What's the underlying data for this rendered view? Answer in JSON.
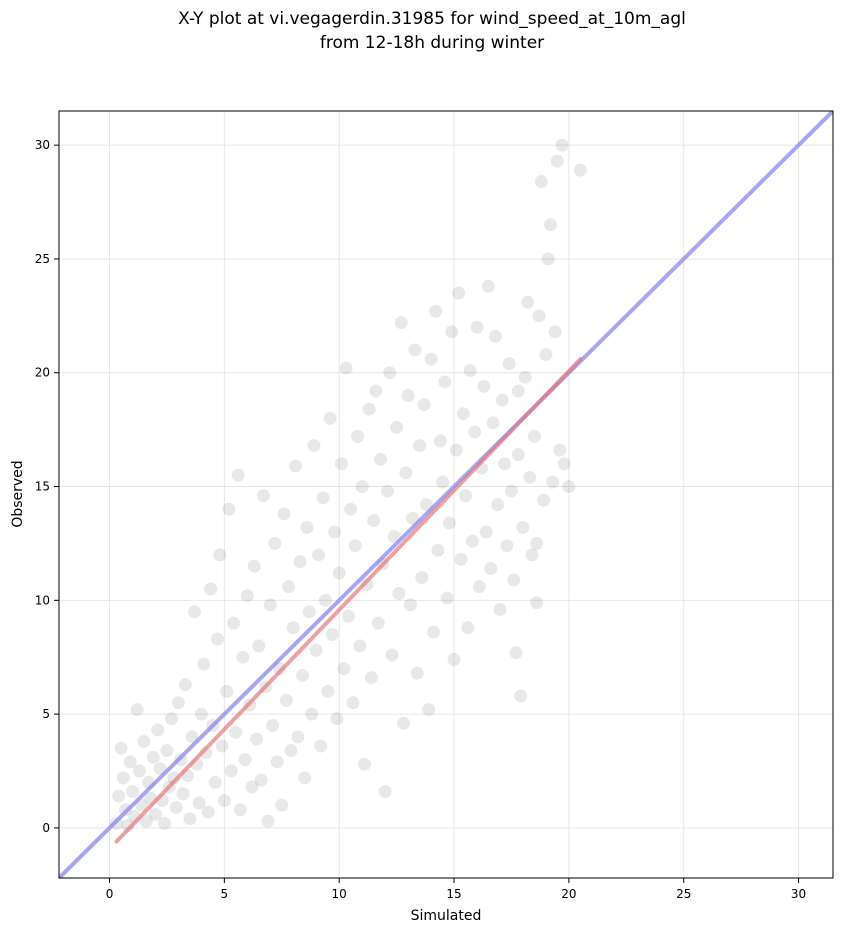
{
  "chart_data": {
    "type": "scatter",
    "title_lines": [
      "X-Y plot at vi.vegagerdin.31985 for wind_speed_at_10m_agl",
      "from 12-18h during winter"
    ],
    "xlabel": "Simulated",
    "ylabel": "Observed",
    "xlim": [
      -2.2,
      31.5
    ],
    "ylim": [
      -2.2,
      31.5
    ],
    "xticks": [
      0,
      5,
      10,
      15,
      20,
      25,
      30
    ],
    "yticks": [
      0,
      5,
      10,
      15,
      20,
      25,
      30
    ],
    "grid": true,
    "legend": "none",
    "colors": {
      "points": "#000000",
      "identity_line": "#8080f0",
      "fit_line": "#e87878",
      "grid": "#e6e6e6"
    },
    "identity_line": {
      "x": [
        -2.2,
        31.5
      ],
      "y": [
        -2.2,
        31.5
      ]
    },
    "fit_line": {
      "x": [
        0.3,
        20.5
      ],
      "y": [
        -0.6,
        20.6
      ]
    },
    "points": [
      [
        0.3,
        0.2
      ],
      [
        0.4,
        1.4
      ],
      [
        0.5,
        3.5
      ],
      [
        0.6,
        2.2
      ],
      [
        0.7,
        0.8
      ],
      [
        0.8,
        0.1
      ],
      [
        0.9,
        2.9
      ],
      [
        1.0,
        1.6
      ],
      [
        1.1,
        0.5
      ],
      [
        1.2,
        5.2
      ],
      [
        1.3,
        2.5
      ],
      [
        1.4,
        1.0
      ],
      [
        1.5,
        3.8
      ],
      [
        1.6,
        0.3
      ],
      [
        1.7,
        2.0
      ],
      [
        1.8,
        1.3
      ],
      [
        1.9,
        3.1
      ],
      [
        2.0,
        0.6
      ],
      [
        2.1,
        4.3
      ],
      [
        2.2,
        2.6
      ],
      [
        2.3,
        1.2
      ],
      [
        2.4,
        0.2
      ],
      [
        2.5,
        3.4
      ],
      [
        2.6,
        1.8
      ],
      [
        2.7,
        4.8
      ],
      [
        2.8,
        2.2
      ],
      [
        2.9,
        0.9
      ],
      [
        3.0,
        5.5
      ],
      [
        3.1,
        3.0
      ],
      [
        3.2,
        1.5
      ],
      [
        3.3,
        6.3
      ],
      [
        3.4,
        2.3
      ],
      [
        3.5,
        0.4
      ],
      [
        3.6,
        4.0
      ],
      [
        3.7,
        9.5
      ],
      [
        3.8,
        2.8
      ],
      [
        3.9,
        1.1
      ],
      [
        4.0,
        5.0
      ],
      [
        4.1,
        7.2
      ],
      [
        4.2,
        3.3
      ],
      [
        4.3,
        0.7
      ],
      [
        4.4,
        10.5
      ],
      [
        4.5,
        4.5
      ],
      [
        4.6,
        2.0
      ],
      [
        4.7,
        8.3
      ],
      [
        4.8,
        12.0
      ],
      [
        4.9,
        3.6
      ],
      [
        5.0,
        1.2
      ],
      [
        5.1,
        6.0
      ],
      [
        5.2,
        14.0
      ],
      [
        5.3,
        2.5
      ],
      [
        5.4,
        9.0
      ],
      [
        5.5,
        4.2
      ],
      [
        5.6,
        15.5
      ],
      [
        5.7,
        0.8
      ],
      [
        5.8,
        7.5
      ],
      [
        5.9,
        3.0
      ],
      [
        6.0,
        10.2
      ],
      [
        6.1,
        5.4
      ],
      [
        6.2,
        1.8
      ],
      [
        6.3,
        11.5
      ],
      [
        6.4,
        3.9
      ],
      [
        6.5,
        8.0
      ],
      [
        6.6,
        2.1
      ],
      [
        6.7,
        14.6
      ],
      [
        6.8,
        6.2
      ],
      [
        6.9,
        0.3
      ],
      [
        7.0,
        9.8
      ],
      [
        7.1,
        4.5
      ],
      [
        7.2,
        12.5
      ],
      [
        7.3,
        2.9
      ],
      [
        7.4,
        7.0
      ],
      [
        7.5,
        1.0
      ],
      [
        7.6,
        13.8
      ],
      [
        7.7,
        5.6
      ],
      [
        7.8,
        10.6
      ],
      [
        7.9,
        3.4
      ],
      [
        8.0,
        8.8
      ],
      [
        8.1,
        15.9
      ],
      [
        8.2,
        4.0
      ],
      [
        8.3,
        11.7
      ],
      [
        8.4,
        6.7
      ],
      [
        8.5,
        2.2
      ],
      [
        8.6,
        13.2
      ],
      [
        8.7,
        9.5
      ],
      [
        8.8,
        5.0
      ],
      [
        8.9,
        16.8
      ],
      [
        9.0,
        7.8
      ],
      [
        9.1,
        12.0
      ],
      [
        9.2,
        3.6
      ],
      [
        9.3,
        14.5
      ],
      [
        9.4,
        10.0
      ],
      [
        9.5,
        6.0
      ],
      [
        9.6,
        18.0
      ],
      [
        9.7,
        8.5
      ],
      [
        9.8,
        13.0
      ],
      [
        9.9,
        4.8
      ],
      [
        10.0,
        11.2
      ],
      [
        10.1,
        16.0
      ],
      [
        10.2,
        7.0
      ],
      [
        10.3,
        20.2
      ],
      [
        10.4,
        9.3
      ],
      [
        10.5,
        14.0
      ],
      [
        10.6,
        5.5
      ],
      [
        10.7,
        12.4
      ],
      [
        10.8,
        17.2
      ],
      [
        10.9,
        8.0
      ],
      [
        11.0,
        15.0
      ],
      [
        11.1,
        2.8
      ],
      [
        11.2,
        10.7
      ],
      [
        11.3,
        18.4
      ],
      [
        11.4,
        6.6
      ],
      [
        11.5,
        13.5
      ],
      [
        11.6,
        19.2
      ],
      [
        11.7,
        9.0
      ],
      [
        11.8,
        16.2
      ],
      [
        11.9,
        11.6
      ],
      [
        12.0,
        1.6
      ],
      [
        12.1,
        14.8
      ],
      [
        12.2,
        20.0
      ],
      [
        12.3,
        7.6
      ],
      [
        12.4,
        12.8
      ],
      [
        12.5,
        17.6
      ],
      [
        12.6,
        10.3
      ],
      [
        12.7,
        22.2
      ],
      [
        12.8,
        4.6
      ],
      [
        12.9,
        15.6
      ],
      [
        13.0,
        19.0
      ],
      [
        13.1,
        9.8
      ],
      [
        13.2,
        13.6
      ],
      [
        13.3,
        21.0
      ],
      [
        13.4,
        6.8
      ],
      [
        13.5,
        16.8
      ],
      [
        13.6,
        11.0
      ],
      [
        13.7,
        18.6
      ],
      [
        13.8,
        14.2
      ],
      [
        13.9,
        5.2
      ],
      [
        14.0,
        20.6
      ],
      [
        14.1,
        8.6
      ],
      [
        14.2,
        22.7
      ],
      [
        14.3,
        12.2
      ],
      [
        14.4,
        17.0
      ],
      [
        14.5,
        15.2
      ],
      [
        14.6,
        19.6
      ],
      [
        14.7,
        10.1
      ],
      [
        14.8,
        13.4
      ],
      [
        14.9,
        21.8
      ],
      [
        15.0,
        7.4
      ],
      [
        15.1,
        16.6
      ],
      [
        15.2,
        23.5
      ],
      [
        15.3,
        11.8
      ],
      [
        15.4,
        18.2
      ],
      [
        15.5,
        14.6
      ],
      [
        15.6,
        8.8
      ],
      [
        15.7,
        20.1
      ],
      [
        15.8,
        12.6
      ],
      [
        15.9,
        17.4
      ],
      [
        16.0,
        22.0
      ],
      [
        16.1,
        10.6
      ],
      [
        16.2,
        15.8
      ],
      [
        16.3,
        19.4
      ],
      [
        16.4,
        13.0
      ],
      [
        16.5,
        23.8
      ],
      [
        16.6,
        11.4
      ],
      [
        16.7,
        17.8
      ],
      [
        16.8,
        21.6
      ],
      [
        16.9,
        14.2
      ],
      [
        17.0,
        9.6
      ],
      [
        17.1,
        18.8
      ],
      [
        17.2,
        16.0
      ],
      [
        17.3,
        12.4
      ],
      [
        17.4,
        20.4
      ],
      [
        17.5,
        14.8
      ],
      [
        17.6,
        10.9
      ],
      [
        17.7,
        7.7
      ],
      [
        17.8,
        16.4
      ],
      [
        17.9,
        5.8
      ],
      [
        18.0,
        13.2
      ],
      [
        18.1,
        19.8
      ],
      [
        18.2,
        23.1
      ],
      [
        18.3,
        15.4
      ],
      [
        18.4,
        12.0
      ],
      [
        18.5,
        17.2
      ],
      [
        18.6,
        9.9
      ],
      [
        18.7,
        22.5
      ],
      [
        18.8,
        28.4
      ],
      [
        18.9,
        14.4
      ],
      [
        19.0,
        20.8
      ],
      [
        19.1,
        25.0
      ],
      [
        19.2,
        26.5
      ],
      [
        19.3,
        15.2
      ],
      [
        19.4,
        21.8
      ],
      [
        19.5,
        29.3
      ],
      [
        19.6,
        16.6
      ],
      [
        19.7,
        30.0
      ],
      [
        19.8,
        16.0
      ],
      [
        20.0,
        15.0
      ],
      [
        20.5,
        28.9
      ],
      [
        17.8,
        19.2
      ],
      [
        18.6,
        12.5
      ]
    ]
  }
}
